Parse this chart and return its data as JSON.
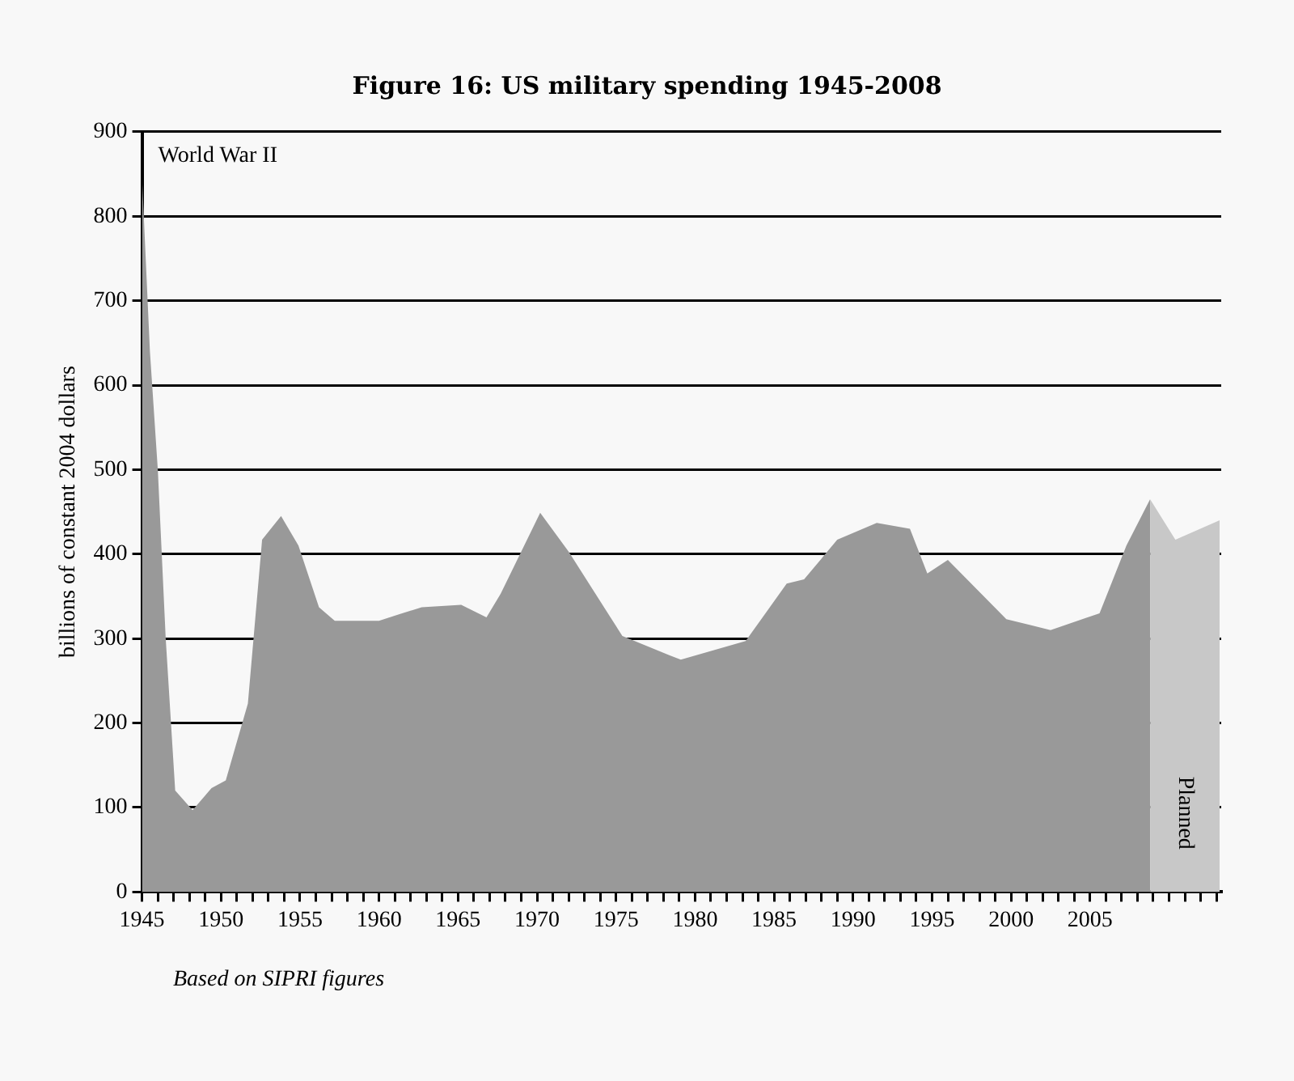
{
  "chart_data": {
    "type": "area",
    "title": "Figure 16: US military spending 1945-2008",
    "ylabel": "billions of constant 2004 dollars",
    "series": [
      {
        "color": "#999999",
        "x": [
          1945,
          1945.5,
          1946,
          1946.5,
          1947.1,
          1948.2,
          1949.4,
          1950.3,
          1951.7,
          1952.6,
          1953.8,
          1954.9,
          1956.2,
          1957.2,
          1960,
          1961.3,
          1962.7,
          1965.2,
          1966.8,
          1967.7,
          1970.2,
          1972,
          1975.4,
          1978.4,
          1979.1,
          1983.2,
          1985.8,
          1986.9,
          1989,
          1991.5,
          1993.6,
          1994.7,
          1996,
          1999.7,
          2002.5,
          2005.6,
          2007.3,
          2008.8
        ],
        "values": [
          846,
          640,
          500,
          300,
          120,
          97,
          123,
          132,
          223,
          417,
          445,
          410,
          337,
          321,
          321,
          329,
          337,
          340,
          325,
          353,
          449,
          403,
          303,
          280,
          275,
          297,
          365,
          370,
          417,
          437,
          430,
          377,
          393,
          323,
          310,
          330,
          410,
          465
        ]
      },
      {
        "name": "Planned",
        "color": "#c8c8c8",
        "x": [
          2008.8,
          2010.4,
          2013.2
        ],
        "values": [
          465,
          417,
          440
        ]
      }
    ],
    "xlim": [
      1945,
      2013.3
    ],
    "xticks": [
      1945,
      {
        "value": 1946,
        "label": null
      },
      {
        "value": 1947,
        "label": null
      },
      {
        "value": 1948,
        "label": null
      },
      {
        "value": 1949,
        "label": null
      },
      1950,
      {
        "value": 1951,
        "label": null
      },
      {
        "value": 1952,
        "label": null
      },
      {
        "value": 1953,
        "label": null
      },
      {
        "value": 1954,
        "label": null
      },
      1955,
      {
        "value": 1956,
        "label": null
      },
      {
        "value": 1957,
        "label": null
      },
      {
        "value": 1958,
        "label": null
      },
      {
        "value": 1959,
        "label": null
      },
      1960,
      {
        "value": 1961,
        "label": null
      },
      {
        "value": 1962,
        "label": null
      },
      {
        "value": 1963,
        "label": null
      },
      {
        "value": 1964,
        "label": null
      },
      1965,
      {
        "value": 1966,
        "label": null
      },
      {
        "value": 1967,
        "label": null
      },
      {
        "value": 1968,
        "label": null
      },
      {
        "value": 1969,
        "label": null
      },
      1970,
      {
        "value": 1971,
        "label": null
      },
      {
        "value": 1972,
        "label": null
      },
      {
        "value": 1973,
        "label": null
      },
      {
        "value": 1974,
        "label": null
      },
      1975,
      {
        "value": 1976,
        "label": null
      },
      {
        "value": 1977,
        "label": null
      },
      {
        "value": 1978,
        "label": null
      },
      {
        "value": 1979,
        "label": null
      },
      1980,
      {
        "value": 1981,
        "label": null
      },
      {
        "value": 1982,
        "label": null
      },
      {
        "value": 1983,
        "label": null
      },
      {
        "value": 1984,
        "label": null
      },
      1985,
      {
        "value": 1986,
        "label": null
      },
      {
        "value": 1987,
        "label": null
      },
      {
        "value": 1988,
        "label": null
      },
      {
        "value": 1989,
        "label": null
      },
      1990,
      {
        "value": 1991,
        "label": null
      },
      {
        "value": 1992,
        "label": null
      },
      {
        "value": 1993,
        "label": null
      },
      {
        "value": 1994,
        "label": null
      },
      1995,
      {
        "value": 1996,
        "label": null
      },
      {
        "value": 1997,
        "label": null
      },
      {
        "value": 1998,
        "label": null
      },
      {
        "value": 1999,
        "label": null
      },
      2000,
      {
        "value": 2001,
        "label": null
      },
      {
        "value": 2002,
        "label": null
      },
      {
        "value": 2003,
        "label": null
      },
      {
        "value": 2004,
        "label": null
      },
      2005,
      {
        "value": 2006,
        "label": null
      },
      {
        "value": 2007,
        "label": null
      },
      {
        "value": 2008,
        "label": null
      },
      {
        "value": 2009,
        "label": null
      },
      {
        "value": 2010,
        "label": null
      },
      {
        "value": 2011,
        "label": null
      },
      {
        "value": 2012,
        "label": null
      },
      {
        "value": 2013,
        "label": null
      }
    ],
    "ylim": [
      0,
      900
    ],
    "yticks": [
      0,
      100,
      200,
      300,
      400,
      500,
      600,
      700,
      800,
      900
    ],
    "grid": "y",
    "legend": false,
    "marker": "none",
    "annotations": [
      "World War II",
      "Based on SIPRI figures"
    ]
  }
}
